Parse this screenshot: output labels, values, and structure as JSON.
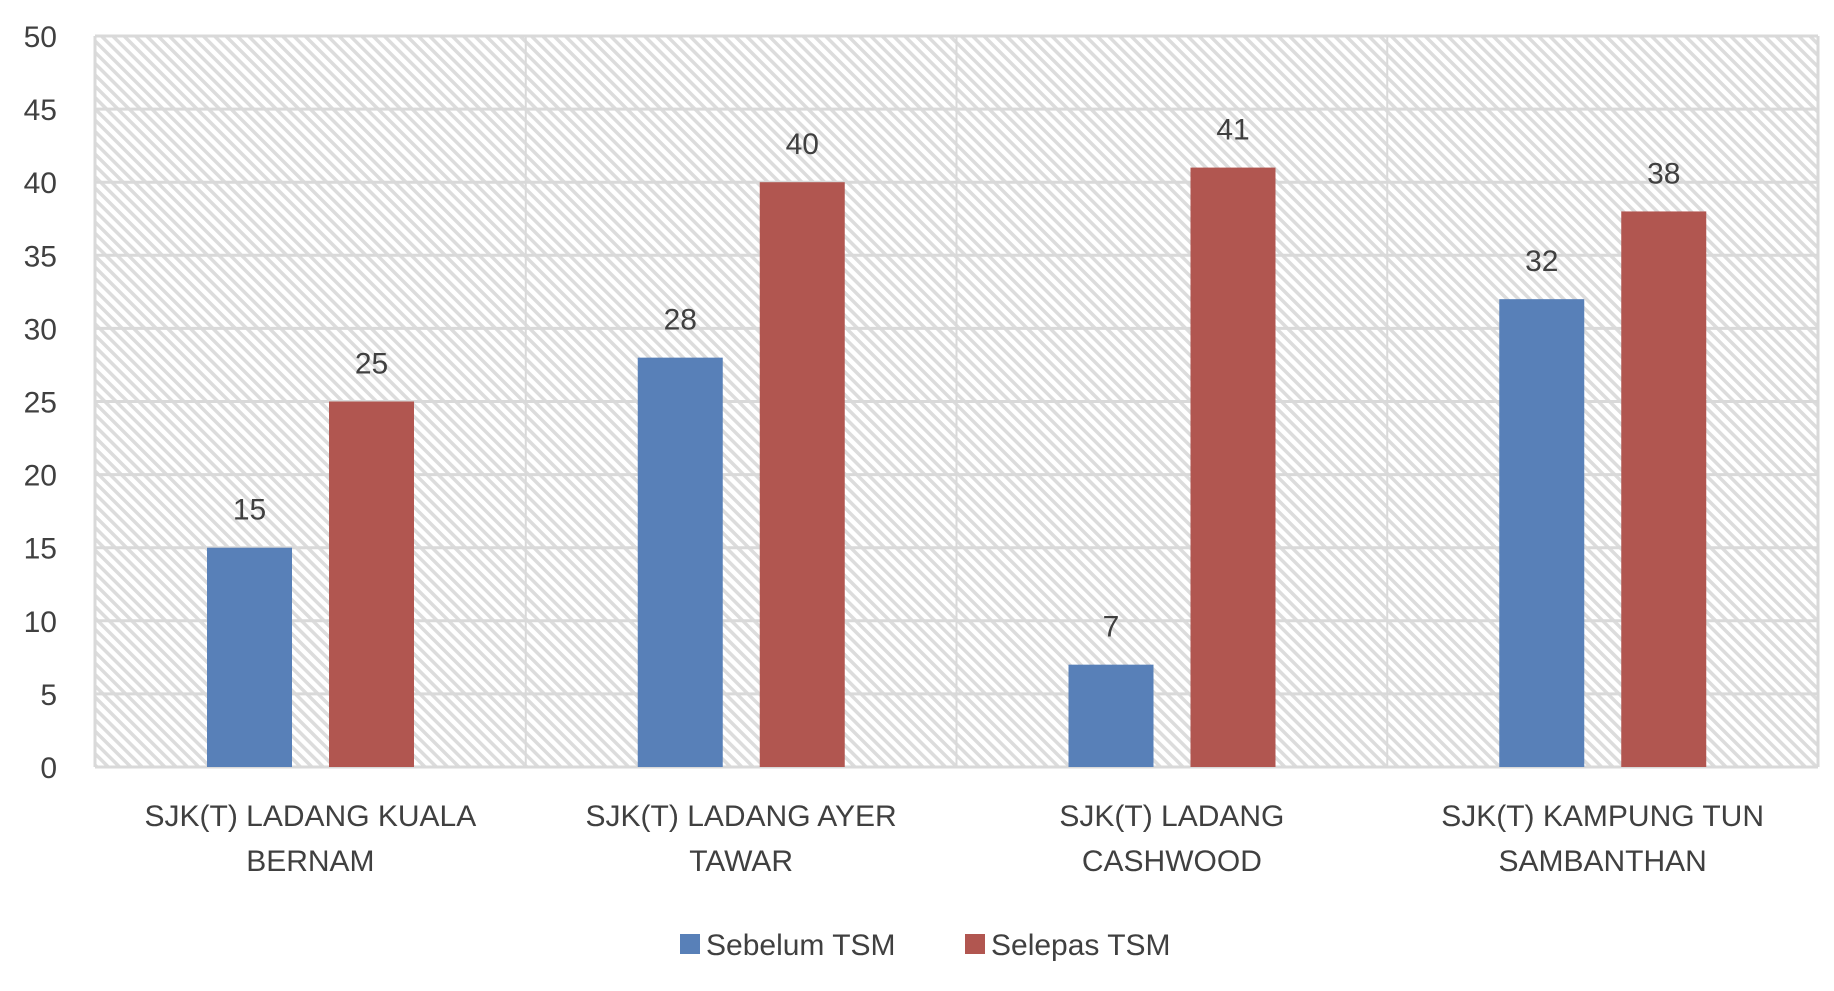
{
  "chart_data": {
    "type": "bar",
    "title": "",
    "xlabel": "",
    "ylabel": "",
    "ylim": [
      0,
      50
    ],
    "yticks": [
      0,
      5,
      10,
      15,
      20,
      25,
      30,
      35,
      40,
      45,
      50
    ],
    "grid": true,
    "legend_placement": "bottom",
    "categories": [
      [
        "SJK(T) LADANG KUALA",
        "BERNAM"
      ],
      [
        "SJK(T) LADANG AYER",
        "TAWAR"
      ],
      [
        "SJK(T) LADANG",
        "CASHWOOD"
      ],
      [
        "SJK(T) KAMPUNG TUN",
        "SAMBANTHAN"
      ]
    ],
    "series": [
      {
        "name": "Sebelum TSM",
        "color": "#5880b8",
        "values": [
          15,
          28,
          7,
          32
        ]
      },
      {
        "name": "Selepas TSM",
        "color": "#b15650",
        "values": [
          25,
          40,
          41,
          38
        ]
      }
    ],
    "background": "diagonal hatch",
    "colors": {
      "grid": "#d9d9d9",
      "hatch": "#dcdcdc",
      "text": "#404040"
    }
  }
}
